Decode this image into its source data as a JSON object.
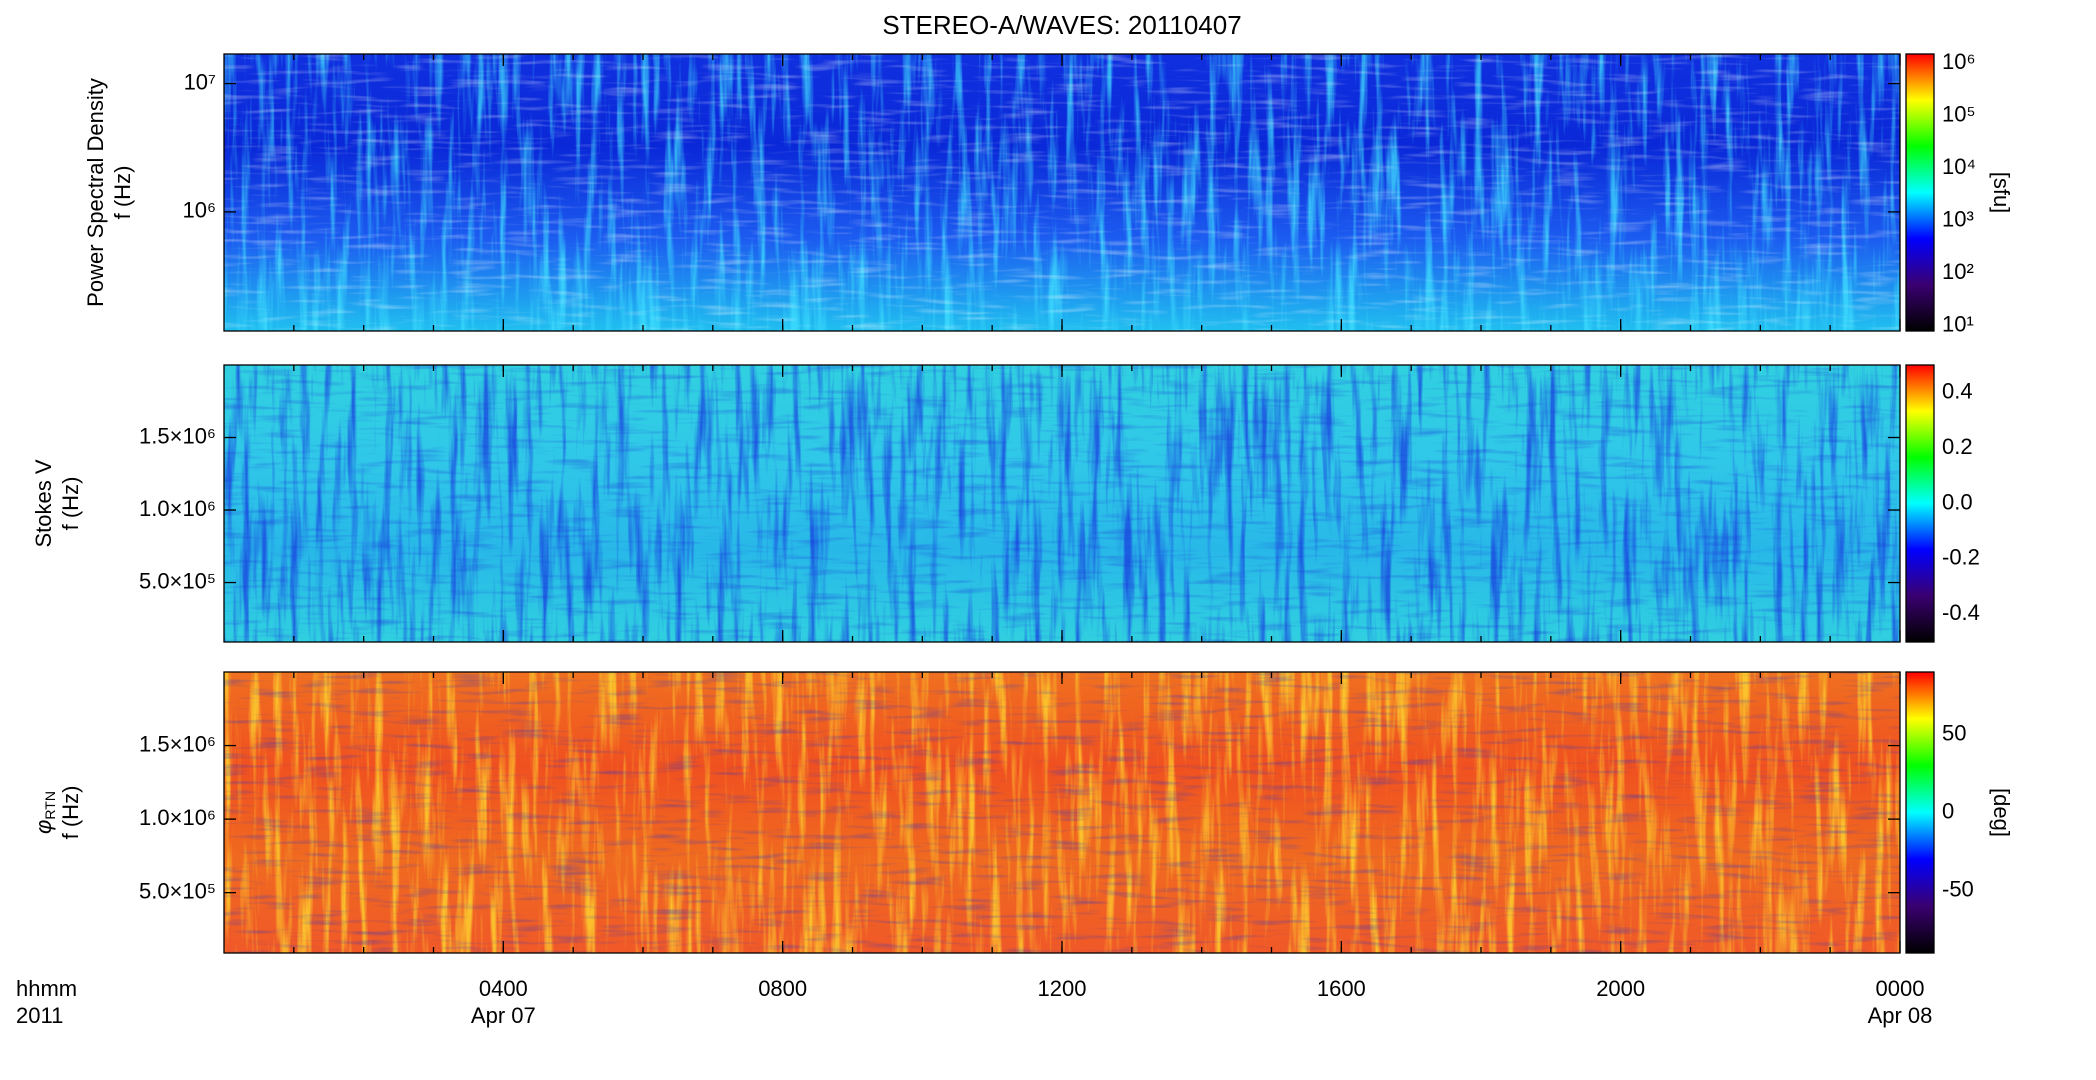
{
  "chart_data": [
    {
      "type": "heatmap",
      "title": "STEREO-A/WAVES: 20110407",
      "ylabel": [
        "Power Spectral Density",
        "f (Hz)"
      ],
      "ylog": true,
      "ylim": [
        118000,
        17000000
      ],
      "yticks": [
        {
          "value": 1000000,
          "label": "10⁶"
        },
        {
          "value": 10000000,
          "label": "10⁷"
        }
      ],
      "background": [
        "#1030e0",
        "#0a28d8",
        "#1c5cf0",
        "#20c0f0"
      ],
      "streak_color": "#40e0ff",
      "colorbar": {
        "log": true,
        "lim": [
          8,
          1500000
        ],
        "ticks": [
          {
            "value": 10,
            "label": "10¹"
          },
          {
            "value": 100,
            "label": "10²"
          },
          {
            "value": 1000,
            "label": "10³"
          },
          {
            "value": 10000,
            "label": "10⁴"
          },
          {
            "value": 100000,
            "label": "10⁵"
          },
          {
            "value": 1000000,
            "label": "10⁶"
          }
        ],
        "label": "[sfu]",
        "colors": [
          "#000000",
          "#3a0070",
          "#0000ff",
          "#00ffff",
          "#00ff00",
          "#ffff00",
          "#ff0000"
        ]
      }
    },
    {
      "type": "heatmap",
      "ylabel": [
        "Stokes V",
        "f (Hz)"
      ],
      "ylog": false,
      "ylim": [
        90000,
        2000000
      ],
      "yticks": [
        {
          "value": 500000,
          "label": "5.0×10⁵"
        },
        {
          "value": 1000000,
          "label": "1.0×10⁶"
        },
        {
          "value": 1500000,
          "label": "1.5×10⁶"
        }
      ],
      "background": [
        "#30d0e0",
        "#30c8e8",
        "#28b8e8",
        "#30d0e0"
      ],
      "streak_color": "#1840e0",
      "colorbar": {
        "log": false,
        "lim": [
          -0.5,
          0.5
        ],
        "ticks": [
          -0.4,
          -0.2,
          {
            "value": 0,
            "label": "0.0"
          },
          0.2,
          0.4
        ],
        "label": "",
        "colors": [
          "#000000",
          "#3a0070",
          "#0000ff",
          "#00ffff",
          "#00ff00",
          "#ffff00",
          "#ff0000"
        ]
      }
    },
    {
      "type": "heatmap",
      "ylabel": [
        "f (Hz)"
      ],
      "ylabel_symbol": "φ",
      "ylabel_subscript": "RTN",
      "ylog": false,
      "ylim": [
        90000,
        2000000
      ],
      "yticks": [
        {
          "value": 500000,
          "label": "5.0×10⁵"
        },
        {
          "value": 1000000,
          "label": "1.0×10⁶"
        },
        {
          "value": 1500000,
          "label": "1.5×10⁶"
        }
      ],
      "background": [
        "#f07020",
        "#f05020",
        "#f06a20",
        "#f05828"
      ],
      "streak_color": "#ffe030",
      "colorbar": {
        "log": false,
        "lim": [
          -90,
          90
        ],
        "ticks": [
          -50,
          0,
          50
        ],
        "label": "[deg]",
        "colors": [
          "#000000",
          "#3a0070",
          "#0000ff",
          "#00ffff",
          "#00ff00",
          "#ffff00",
          "#ff0000"
        ]
      },
      "xlim": [
        0,
        24
      ],
      "xticks": [
        {
          "value": 4,
          "label": "0400"
        },
        {
          "value": 8,
          "label": "0800"
        },
        {
          "value": 12,
          "label": "1200"
        },
        {
          "value": 16,
          "label": "1600"
        },
        {
          "value": 20,
          "label": "2000"
        },
        {
          "value": 24,
          "label": "0000"
        }
      ],
      "date_labels": [
        {
          "value": 4,
          "label": "Apr 07"
        },
        {
          "value": 24,
          "label": "Apr 08"
        }
      ],
      "x_corner_labels": [
        "hhmm",
        "2011"
      ]
    }
  ]
}
